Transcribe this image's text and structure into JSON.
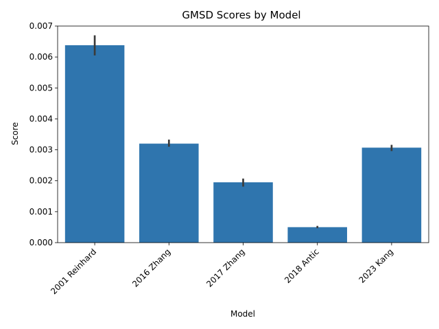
{
  "chart_data": {
    "type": "bar",
    "title": "GMSD Scores by Model",
    "xlabel": "Model",
    "ylabel": "Score",
    "categories": [
      "2001 Reinhard",
      "2016 Zhang",
      "2017 Zhang",
      "2018 Antic",
      "2023 Kang"
    ],
    "values": [
      0.00638,
      0.0032,
      0.00195,
      0.0005,
      0.00307
    ],
    "error_low": [
      0.00605,
      0.0031,
      0.00181,
      0.00047,
      0.00296
    ],
    "error_high": [
      0.0067,
      0.00333,
      0.00207,
      0.00054,
      0.00316
    ],
    "ylim": [
      0,
      0.007
    ],
    "yticks": [
      "0.000",
      "0.001",
      "0.002",
      "0.003",
      "0.004",
      "0.005",
      "0.006",
      "0.007"
    ],
    "bar_color": "#2f75ae",
    "grid": false,
    "legend": "none"
  }
}
